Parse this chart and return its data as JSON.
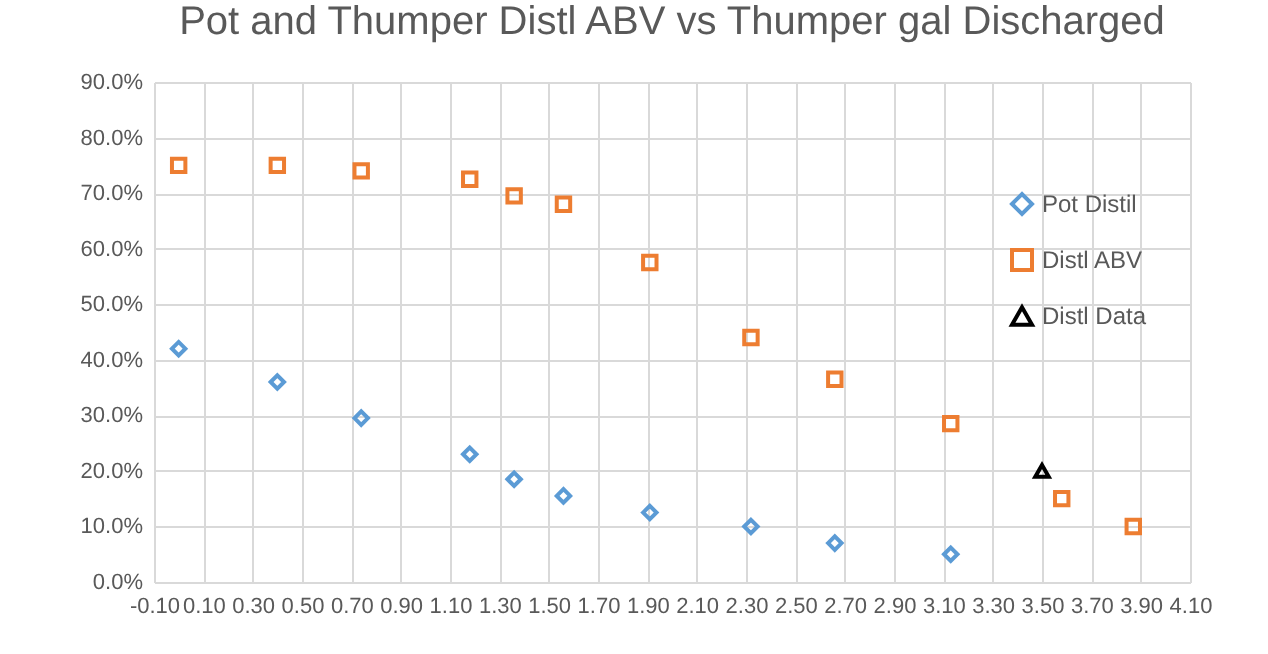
{
  "chart_data": {
    "type": "scatter",
    "title": "Pot and Thumper Distl ABV vs Thumper gal  Discharged",
    "x": [
      0.0,
      0.4,
      0.74,
      1.18,
      1.36,
      1.56,
      1.91,
      2.32,
      2.66,
      3.13,
      3.58,
      3.87
    ],
    "series": [
      {
        "name": "Pot Distil",
        "color": "#5b9bd5",
        "marker": "diamond",
        "x": [
          0.0,
          0.4,
          0.74,
          1.18,
          1.36,
          1.56,
          1.91,
          2.32,
          2.66,
          3.13
        ],
        "values": [
          42,
          36,
          29.5,
          23,
          18.5,
          15.5,
          12.5,
          10,
          7,
          5
        ]
      },
      {
        "name": "Distl ABV",
        "color": "#ed7d31",
        "marker": "square",
        "values": [
          75,
          75,
          74,
          72.5,
          69.5,
          68,
          57.5,
          44,
          36.5,
          28.5,
          15,
          10
        ]
      },
      {
        "name": "Distl Data",
        "color": "#000000",
        "marker": "triangle",
        "x": [
          3.5
        ],
        "values": [
          20
        ]
      }
    ],
    "xlim": [
      -0.1,
      4.1
    ],
    "xticks": [
      {
        "value": -0.1,
        "label": "-0.10"
      },
      {
        "value": 0.1,
        "label": "0.10"
      },
      {
        "value": 0.3,
        "label": "0.30"
      },
      {
        "value": 0.5,
        "label": "0.50"
      },
      {
        "value": 0.7,
        "label": "0.70"
      },
      {
        "value": 0.9,
        "label": "0.90"
      },
      {
        "value": 1.1,
        "label": "1.10"
      },
      {
        "value": 1.3,
        "label": "1.30"
      },
      {
        "value": 1.5,
        "label": "1.50"
      },
      {
        "value": 1.7,
        "label": "1.70"
      },
      {
        "value": 1.9,
        "label": "1.90"
      },
      {
        "value": 2.1,
        "label": "2.10"
      },
      {
        "value": 2.3,
        "label": "2.30"
      },
      {
        "value": 2.5,
        "label": "2.50"
      },
      {
        "value": 2.7,
        "label": "2.70"
      },
      {
        "value": 2.9,
        "label": "2.90"
      },
      {
        "value": 3.1,
        "label": "3.10"
      },
      {
        "value": 3.3,
        "label": "3.30"
      },
      {
        "value": 3.5,
        "label": "3.50"
      },
      {
        "value": 3.7,
        "label": "3.70"
      },
      {
        "value": 3.9,
        "label": "3.90"
      },
      {
        "value": 4.1,
        "label": "4.10"
      }
    ],
    "ylim": [
      0,
      90
    ],
    "yticks": [
      {
        "value": 0,
        "label": "0.0%"
      },
      {
        "value": 10,
        "label": "10.0%"
      },
      {
        "value": 20,
        "label": "20.0%"
      },
      {
        "value": 30,
        "label": "30.0%"
      },
      {
        "value": 40,
        "label": "40.0%"
      },
      {
        "value": 50,
        "label": "50.0%"
      },
      {
        "value": 60,
        "label": "60.0%"
      },
      {
        "value": 70,
        "label": "70.0%"
      },
      {
        "value": 80,
        "label": "80.0%"
      },
      {
        "value": 90,
        "label": "90.0%"
      }
    ],
    "grid": true,
    "legend": "right"
  }
}
